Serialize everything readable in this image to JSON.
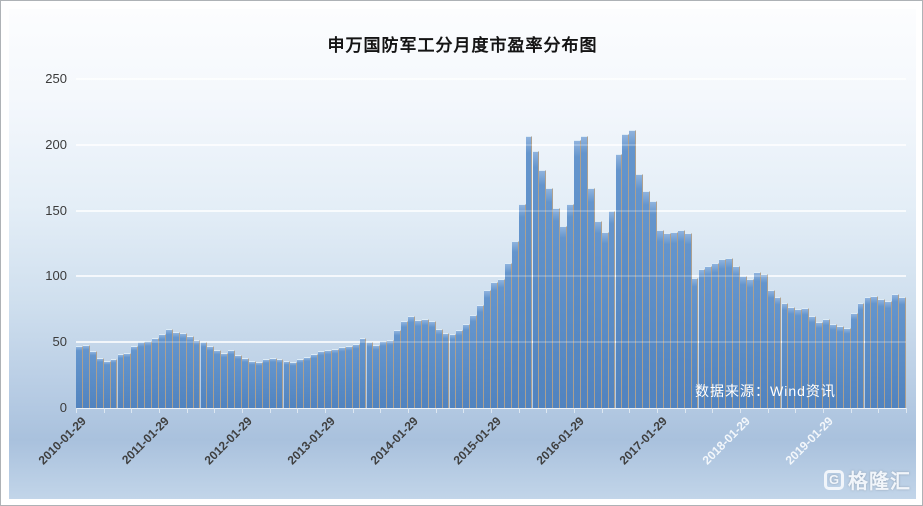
{
  "title": "申万国防军工分月度市盈率分布图",
  "source_note": "数据来源：Wind资讯",
  "watermark": {
    "icon": "G",
    "text": "格隆汇"
  },
  "colors": {
    "bar": "#5a8cc6",
    "bar_gap": "#b1a08b",
    "gridline": "#ffffff",
    "title_text": "#141414",
    "axis_text": "#3b3b3b",
    "light_axis_text": "#f3f7fb",
    "note_text": "#ffffff",
    "background_top": "#fcfdfe",
    "background_bottom": "#b7cce4"
  },
  "chart_data": {
    "type": "bar",
    "title": "申万国防军工分月度市盈率分布图",
    "xlabel": "",
    "ylabel": "",
    "ylim": [
      0,
      250
    ],
    "grid": "horizontal-white-lines",
    "legend": "none",
    "start_month": "2010-01",
    "end_month": "2019-12",
    "frequency": "monthly",
    "y_ticks": [
      0,
      50,
      100,
      150,
      200,
      250
    ],
    "x_tick_labels": [
      {
        "text": "2010-01-29",
        "color": "#3f3f3f"
      },
      {
        "text": "2011-01-29",
        "color": "#3f3f3f"
      },
      {
        "text": "2012-01-29",
        "color": "#3f3f3f"
      },
      {
        "text": "2013-01-29",
        "color": "#3f3f3f"
      },
      {
        "text": "2014-01-29",
        "color": "#3f3f3f"
      },
      {
        "text": "2015-01-29",
        "color": "#3f3f3f"
      },
      {
        "text": "2016-01-29",
        "color": "#3f3f3f"
      },
      {
        "text": "2017-01-29",
        "color": "#3f3f3f"
      },
      {
        "text": "2018-01-29",
        "color": "#f3f7fb"
      },
      {
        "text": "2019-01-29",
        "color": "#f3f7fb"
      }
    ],
    "series": [
      {
        "name": "市盈率",
        "values": [
          47,
          48,
          43,
          38,
          36,
          37,
          41,
          42,
          47,
          50,
          51,
          53,
          56,
          60,
          58,
          57,
          55,
          52,
          50,
          47,
          44,
          42,
          44,
          40,
          38,
          36,
          35,
          37,
          38,
          37,
          36,
          35,
          37,
          39,
          41,
          43,
          44,
          45,
          46,
          47,
          49,
          53,
          50,
          48,
          51,
          52,
          59,
          66,
          70,
          67,
          68,
          66,
          60,
          57,
          56,
          59,
          64,
          71,
          78,
          90,
          96,
          98,
          110,
          127,
          155,
          207,
          195,
          181,
          167,
          152,
          138,
          155,
          204,
          207,
          167,
          142,
          134,
          150,
          193,
          208,
          211,
          178,
          165,
          157,
          135,
          133,
          134,
          135,
          133,
          99,
          106,
          108,
          110,
          113,
          114,
          108,
          100,
          98,
          103,
          102,
          90,
          84,
          80,
          77,
          75,
          76,
          70,
          65,
          68,
          64,
          62,
          61,
          72,
          80,
          84,
          85,
          83,
          81,
          87,
          84
        ]
      }
    ]
  }
}
